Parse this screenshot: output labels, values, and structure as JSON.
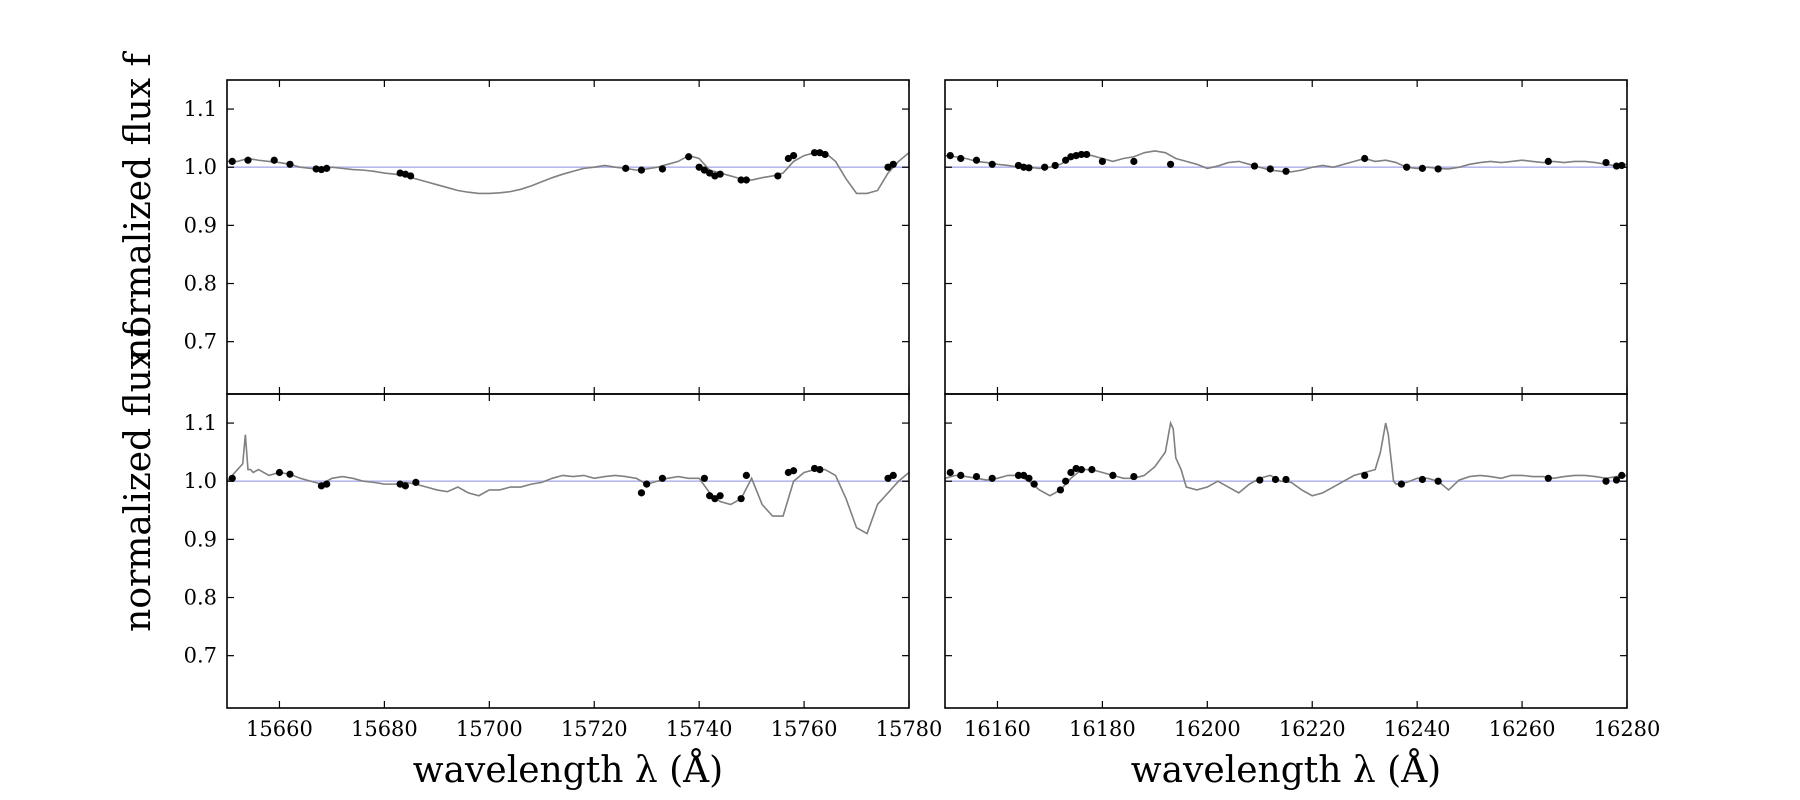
{
  "chart_data": [
    {
      "type": "line",
      "panel": "top-left",
      "xlim": [
        15650,
        15780
      ],
      "ylim": [
        0.61,
        1.15
      ],
      "xticks": [
        15660,
        15680,
        15700,
        15720,
        15740,
        15760,
        15780
      ],
      "yticks": [
        0.7,
        0.8,
        0.9,
        1.0,
        1.1
      ],
      "ylabel": "normalized flux f",
      "xlabel": "",
      "reference_line": 1.0,
      "series": [
        {
          "kind": "spectrum",
          "x": [
            15650,
            15652,
            15654,
            15656,
            15658,
            15660,
            15662,
            15664,
            15666,
            15668,
            15670,
            15672,
            15674,
            15676,
            15678,
            15680,
            15682,
            15684,
            15686,
            15688,
            15690,
            15692,
            15694,
            15696,
            15698,
            15700,
            15702,
            15704,
            15706,
            15708,
            15710,
            15712,
            15714,
            15716,
            15718,
            15720,
            15722,
            15724,
            15726,
            15728,
            15730,
            15732,
            15734,
            15736,
            15738,
            15740,
            15742,
            15744,
            15746,
            15748,
            15750,
            15752,
            15754,
            15756,
            15758,
            15760,
            15762,
            15764,
            15766,
            15768,
            15770,
            15772,
            15774,
            15776,
            15778,
            15780
          ],
          "y": [
            1.01,
            1.01,
            1.015,
            1.012,
            1.01,
            1.008,
            1.005,
            1.0,
            0.998,
            0.997,
            1.0,
            0.998,
            0.996,
            0.995,
            0.993,
            0.99,
            0.988,
            0.985,
            0.98,
            0.975,
            0.97,
            0.965,
            0.96,
            0.957,
            0.955,
            0.955,
            0.956,
            0.958,
            0.962,
            0.968,
            0.975,
            0.982,
            0.988,
            0.993,
            0.998,
            1.0,
            1.003,
            1.0,
            0.998,
            0.995,
            0.997,
            1.0,
            1.005,
            1.01,
            1.02,
            1.015,
            0.995,
            0.99,
            0.985,
            0.98,
            0.978,
            0.982,
            0.985,
            0.99,
            1.01,
            1.02,
            1.025,
            1.025,
            1.01,
            0.98,
            0.955,
            0.955,
            0.96,
            0.99,
            1.01,
            1.025
          ]
        },
        {
          "kind": "points",
          "x": [
            15651,
            15654,
            15659,
            15662,
            15667,
            15668,
            15669,
            15683,
            15684,
            15685,
            15726,
            15729,
            15733,
            15738,
            15740,
            15741,
            15742,
            15743,
            15744,
            15748,
            15749,
            15755,
            15757,
            15758,
            15762,
            15763,
            15764,
            15776,
            15777
          ],
          "y": [
            1.01,
            1.012,
            1.012,
            1.005,
            0.997,
            0.996,
            0.998,
            0.99,
            0.988,
            0.985,
            0.998,
            0.995,
            0.997,
            1.018,
            1.0,
            0.995,
            0.99,
            0.985,
            0.988,
            0.978,
            0.978,
            0.985,
            1.015,
            1.02,
            1.025,
            1.025,
            1.022,
            1.0,
            1.005
          ]
        }
      ]
    },
    {
      "type": "line",
      "panel": "top-right",
      "xlim": [
        16150,
        16280
      ],
      "ylim": [
        0.61,
        1.15
      ],
      "xticks": [
        16160,
        16180,
        16200,
        16220,
        16240,
        16260,
        16280
      ],
      "yticks": [
        0.7,
        0.8,
        0.9,
        1.0,
        1.1
      ],
      "xlabel": "",
      "ylabel": "",
      "reference_line": 1.0,
      "series": [
        {
          "kind": "spectrum",
          "x": [
            16150,
            16152,
            16154,
            16156,
            16158,
            16160,
            16162,
            16164,
            16166,
            16168,
            16170,
            16172,
            16174,
            16176,
            16178,
            16180,
            16182,
            16184,
            16186,
            16188,
            16190,
            16192,
            16194,
            16196,
            16198,
            16200,
            16202,
            16204,
            16206,
            16208,
            16210,
            16212,
            16214,
            16216,
            16218,
            16220,
            16222,
            16224,
            16226,
            16228,
            16230,
            16232,
            16234,
            16236,
            16238,
            16240,
            16242,
            16244,
            16246,
            16248,
            16250,
            16252,
            16254,
            16256,
            16258,
            16260,
            16262,
            16264,
            16266,
            16268,
            16270,
            16272,
            16274,
            16276,
            16278,
            16280
          ],
          "y": [
            1.02,
            1.018,
            1.015,
            1.01,
            1.008,
            1.005,
            1.003,
            1.0,
            1.0,
            0.998,
            1.0,
            1.005,
            1.015,
            1.022,
            1.02,
            1.015,
            1.01,
            1.015,
            1.018,
            1.025,
            1.028,
            1.025,
            1.015,
            1.01,
            1.005,
            0.998,
            1.002,
            1.008,
            1.01,
            1.005,
            1.0,
            0.995,
            0.993,
            0.992,
            0.995,
            1.0,
            1.003,
            1.0,
            1.005,
            1.01,
            1.015,
            1.01,
            1.012,
            1.008,
            1.0,
            0.998,
            1.0,
            0.998,
            0.997,
            1.0,
            1.005,
            1.008,
            1.01,
            1.008,
            1.01,
            1.012,
            1.01,
            1.008,
            1.01,
            1.008,
            1.01,
            1.01,
            1.008,
            1.005,
            1.002,
            1.005
          ]
        },
        {
          "kind": "points",
          "x": [
            16151,
            16153,
            16156,
            16159,
            16164,
            16165,
            16166,
            16169,
            16171,
            16173,
            16174,
            16175,
            16176,
            16177,
            16180,
            16186,
            16193,
            16209,
            16212,
            16215,
            16230,
            16238,
            16241,
            16244,
            16265,
            16276,
            16278,
            16279
          ],
          "y": [
            1.02,
            1.015,
            1.012,
            1.005,
            1.003,
            1.0,
            0.999,
            1.0,
            1.003,
            1.012,
            1.018,
            1.02,
            1.022,
            1.022,
            1.01,
            1.01,
            1.005,
            1.002,
            0.997,
            0.993,
            1.015,
            1.0,
            0.998,
            0.997,
            1.01,
            1.008,
            1.002,
            1.003
          ]
        }
      ]
    },
    {
      "type": "line",
      "panel": "bottom-left",
      "xlim": [
        15650,
        15780
      ],
      "ylim": [
        0.61,
        1.15
      ],
      "xticks": [
        15660,
        15680,
        15700,
        15720,
        15740,
        15760,
        15780
      ],
      "yticks": [
        0.7,
        0.8,
        0.9,
        1.0,
        1.1
      ],
      "xlabel": "wavelength λ (Å)",
      "ylabel": "normalized flux f",
      "reference_line": 1.0,
      "series": [
        {
          "kind": "spectrum",
          "x": [
            15650,
            15651,
            15652,
            15653,
            15653.5,
            15654,
            15654.5,
            15655,
            15656,
            15658,
            15660,
            15662,
            15664,
            15666,
            15668,
            15670,
            15672,
            15674,
            15676,
            15678,
            15680,
            15682,
            15684,
            15686,
            15688,
            15690,
            15692,
            15694,
            15696,
            15698,
            15700,
            15702,
            15704,
            15706,
            15708,
            15710,
            15712,
            15714,
            15716,
            15718,
            15720,
            15722,
            15724,
            15726,
            15728,
            15730,
            15732,
            15734,
            15736,
            15738,
            15740,
            15742,
            15744,
            15746,
            15748,
            15750,
            15752,
            15754,
            15756,
            15758,
            15760,
            15762,
            15764,
            15766,
            15768,
            15770,
            15772,
            15774,
            15776,
            15778,
            15780
          ],
          "y": [
            1.0,
            1.01,
            1.02,
            1.03,
            1.08,
            1.02,
            1.02,
            1.015,
            1.02,
            1.01,
            1.015,
            1.012,
            1.005,
            1.0,
            0.995,
            1.005,
            1.008,
            1.005,
            1.0,
            0.998,
            0.995,
            0.995,
            0.998,
            0.995,
            0.99,
            0.985,
            0.982,
            0.99,
            0.98,
            0.975,
            0.985,
            0.985,
            0.99,
            0.99,
            0.995,
            0.998,
            1.005,
            1.01,
            1.008,
            1.01,
            1.005,
            1.008,
            1.01,
            1.008,
            1.005,
            0.995,
            1.0,
            1.005,
            1.008,
            1.005,
            1.005,
            0.98,
            0.965,
            0.96,
            0.97,
            1.005,
            0.96,
            0.94,
            0.94,
            1.0,
            1.015,
            1.02,
            1.02,
            1.01,
            0.97,
            0.92,
            0.91,
            0.96,
            0.98,
            1.0,
            1.015
          ]
        },
        {
          "kind": "points",
          "x": [
            15651,
            15660,
            15662,
            15668,
            15669,
            15683,
            15684,
            15686,
            15729,
            15730,
            15733,
            15741,
            15742,
            15743,
            15744,
            15748,
            15749,
            15757,
            15758,
            15762,
            15763,
            15776,
            15777
          ],
          "y": [
            1.005,
            1.015,
            1.012,
            0.992,
            0.995,
            0.995,
            0.992,
            0.998,
            0.98,
            0.995,
            1.005,
            1.005,
            0.975,
            0.97,
            0.975,
            0.97,
            1.01,
            1.015,
            1.018,
            1.022,
            1.02,
            1.005,
            1.01
          ]
        }
      ]
    },
    {
      "type": "line",
      "panel": "bottom-right",
      "xlim": [
        16150,
        16280
      ],
      "ylim": [
        0.61,
        1.15
      ],
      "xticks": [
        16160,
        16180,
        16200,
        16220,
        16240,
        16260,
        16280
      ],
      "yticks": [
        0.7,
        0.8,
        0.9,
        1.0,
        1.1
      ],
      "xlabel": "wavelength λ (Å)",
      "ylabel": "",
      "reference_line": 1.0,
      "series": [
        {
          "kind": "spectrum",
          "x": [
            16150,
            16152,
            16154,
            16156,
            16158,
            16160,
            16162,
            16164,
            16166,
            16168,
            16170,
            16172,
            16174,
            16176,
            16178,
            16180,
            16182,
            16184,
            16186,
            16188,
            16190,
            16192,
            16193,
            16193.5,
            16194,
            16195,
            16196,
            16198,
            16200,
            16202,
            16204,
            16206,
            16208,
            16210,
            16212,
            16214,
            16216,
            16218,
            16220,
            16222,
            16224,
            16226,
            16228,
            16230,
            16232,
            16233,
            16234,
            16234.5,
            16235,
            16235.5,
            16236,
            16238,
            16240,
            16242,
            16244,
            16246,
            16248,
            16250,
            16252,
            16254,
            16256,
            16258,
            16260,
            16262,
            16264,
            16266,
            16268,
            16270,
            16272,
            16274,
            16276,
            16278,
            16280
          ],
          "y": [
            1.005,
            1.01,
            1.008,
            1.005,
            1.002,
            1.005,
            1.01,
            1.01,
            1.0,
            0.985,
            0.975,
            0.985,
            1.005,
            1.02,
            1.02,
            1.015,
            1.01,
            1.005,
            1.005,
            1.01,
            1.025,
            1.05,
            1.1,
            1.09,
            1.04,
            1.02,
            0.99,
            0.985,
            0.99,
            1.0,
            0.99,
            0.98,
            0.995,
            1.005,
            1.01,
            1.0,
            0.998,
            0.985,
            0.975,
            0.98,
            0.99,
            1.0,
            1.01,
            1.015,
            1.02,
            1.05,
            1.1,
            1.08,
            1.04,
            1.0,
            0.995,
            0.998,
            1.005,
            1.005,
            1.0,
            0.985,
            1.002,
            1.008,
            1.01,
            1.008,
            1.005,
            1.01,
            1.01,
            1.008,
            1.008,
            1.005,
            1.008,
            1.01,
            1.01,
            1.008,
            1.005,
            1.008,
            1.01
          ]
        },
        {
          "kind": "points",
          "x": [
            16151,
            16153,
            16156,
            16159,
            16164,
            16165,
            16166,
            16167,
            16172,
            16173,
            16174,
            16175,
            16176,
            16178,
            16182,
            16186,
            16210,
            16213,
            16215,
            16230,
            16237,
            16241,
            16244,
            16265,
            16276,
            16278,
            16279
          ],
          "y": [
            1.015,
            1.01,
            1.008,
            1.005,
            1.01,
            1.01,
            1.005,
            0.995,
            0.985,
            1.0,
            1.015,
            1.022,
            1.02,
            1.02,
            1.01,
            1.008,
            1.002,
            1.003,
            1.003,
            1.01,
            0.995,
            1.003,
            1.0,
            1.005,
            1.0,
            1.002,
            1.01
          ]
        }
      ]
    }
  ]
}
